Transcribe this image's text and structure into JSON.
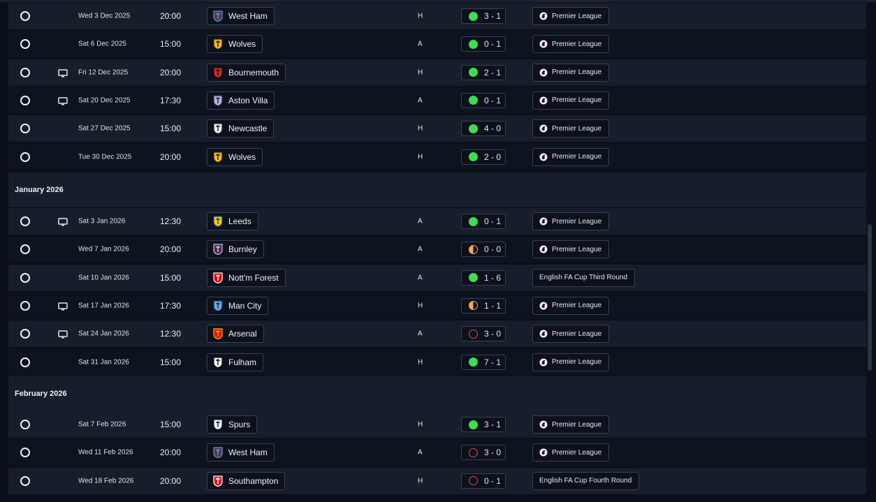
{
  "matches_pre": [
    {
      "date": "Wed 3 Dec 2025",
      "time": "20:00",
      "team": "West Ham",
      "venue": "H",
      "result": "3 - 1",
      "outcome": "win",
      "competition": "Premier League",
      "comp_icon": "premier-league-icon",
      "tv": false,
      "crest": "west-ham-crest-icon"
    },
    {
      "date": "Sat 6 Dec 2025",
      "time": "15:00",
      "team": "Wolves",
      "venue": "A",
      "result": "0 - 1",
      "outcome": "win",
      "competition": "Premier League",
      "comp_icon": "premier-league-icon",
      "tv": false,
      "crest": "wolves-crest-icon"
    },
    {
      "date": "Fri 12 Dec 2025",
      "time": "20:00",
      "team": "Bournemouth",
      "venue": "H",
      "result": "2 - 1",
      "outcome": "win",
      "competition": "Premier League",
      "comp_icon": "premier-league-icon",
      "tv": true,
      "crest": "bournemouth-crest-icon"
    },
    {
      "date": "Sat 20 Dec 2025",
      "time": "17:30",
      "team": "Aston Villa",
      "venue": "A",
      "result": "0 - 1",
      "outcome": "win",
      "competition": "Premier League",
      "comp_icon": "premier-league-icon",
      "tv": true,
      "crest": "aston-villa-crest-icon"
    },
    {
      "date": "Sat 27 Dec 2025",
      "time": "15:00",
      "team": "Newcastle",
      "venue": "H",
      "result": "4 - 0",
      "outcome": "win",
      "competition": "Premier League",
      "comp_icon": "premier-league-icon",
      "tv": false,
      "crest": "newcastle-crest-icon"
    },
    {
      "date": "Tue 30 Dec 2025",
      "time": "20:00",
      "team": "Wolves",
      "venue": "H",
      "result": "2 - 0",
      "outcome": "win",
      "competition": "Premier League",
      "comp_icon": "premier-league-icon",
      "tv": false,
      "crest": "wolves-crest-icon"
    }
  ],
  "month_jan": "January 2026",
  "matches_jan": [
    {
      "date": "Sat 3 Jan 2026",
      "time": "12:30",
      "team": "Leeds",
      "venue": "A",
      "result": "0 - 1",
      "outcome": "win",
      "competition": "Premier League",
      "comp_icon": "premier-league-icon",
      "tv": true,
      "crest": "leeds-crest-icon"
    },
    {
      "date": "Wed 7 Jan 2026",
      "time": "20:00",
      "team": "Burnley",
      "venue": "A",
      "result": "0 - 0",
      "outcome": "draw",
      "competition": "Premier League",
      "comp_icon": "premier-league-icon",
      "tv": false,
      "crest": "burnley-crest-icon"
    },
    {
      "date": "Sat 10 Jan 2026",
      "time": "15:00",
      "team": "Nott'm Forest",
      "venue": "A",
      "result": "1 - 6",
      "outcome": "win",
      "competition": "English FA Cup Third Round",
      "comp_icon": "",
      "tv": false,
      "crest": "nottm-forest-crest-icon"
    },
    {
      "date": "Sat 17 Jan 2026",
      "time": "17:30",
      "team": "Man City",
      "venue": "H",
      "result": "1 - 1",
      "outcome": "draw",
      "competition": "Premier League",
      "comp_icon": "premier-league-icon",
      "tv": true,
      "crest": "man-city-crest-icon"
    },
    {
      "date": "Sat 24 Jan 2026",
      "time": "12:30",
      "team": "Arsenal",
      "venue": "A",
      "result": "3 - 0",
      "outcome": "loss",
      "competition": "Premier League",
      "comp_icon": "premier-league-icon",
      "tv": true,
      "crest": "arsenal-crest-icon"
    },
    {
      "date": "Sat 31 Jan 2026",
      "time": "15:00",
      "team": "Fulham",
      "venue": "H",
      "result": "7 - 1",
      "outcome": "win",
      "competition": "Premier League",
      "comp_icon": "premier-league-icon",
      "tv": false,
      "crest": "fulham-crest-icon"
    }
  ],
  "month_feb": "February 2026",
  "matches_feb": [
    {
      "date": "Sat 7 Feb 2026",
      "time": "15:00",
      "team": "Spurs",
      "venue": "H",
      "result": "3 - 1",
      "outcome": "win",
      "competition": "Premier League",
      "comp_icon": "premier-league-icon",
      "tv": false,
      "crest": "spurs-crest-icon"
    },
    {
      "date": "Wed 11 Feb 2026",
      "time": "20:00",
      "team": "West Ham",
      "venue": "A",
      "result": "3 - 0",
      "outcome": "loss",
      "competition": "Premier League",
      "comp_icon": "premier-league-icon",
      "tv": false,
      "crest": "west-ham-crest-icon"
    },
    {
      "date": "Wed 18 Feb 2026",
      "time": "20:00",
      "team": "Southampton",
      "venue": "H",
      "result": "0 - 1",
      "outcome": "loss",
      "competition": "English FA Cup Fourth Round",
      "comp_icon": "",
      "tv": false,
      "crest": "southampton-crest-icon"
    }
  ],
  "colors": {
    "win": "#3ddc52",
    "draw": "#f7a35c",
    "loss": "#e04b50",
    "row_alt": "#171d2b",
    "row_base": "#0e1320"
  },
  "crest_colors": {
    "west-ham-crest-icon": [
      "#7a263a",
      "#1bb1e7"
    ],
    "wolves-crest-icon": [
      "#fdb913",
      "#231f20"
    ],
    "bournemouth-crest-icon": [
      "#da291c",
      "#111111"
    ],
    "aston-villa-crest-icon": [
      "#95bfe5",
      "#670e36"
    ],
    "newcastle-crest-icon": [
      "#f2f2f2",
      "#241f20"
    ],
    "leeds-crest-icon": [
      "#ffcd00",
      "#1d428a"
    ],
    "burnley-crest-icon": [
      "#6c1d45",
      "#99d6ea"
    ],
    "nottm-forest-crest-icon": [
      "#dd0000",
      "#ffffff"
    ],
    "man-city-crest-icon": [
      "#6cabdd",
      "#1c2c5b"
    ],
    "arsenal-crest-icon": [
      "#ef0107",
      "#e8c200"
    ],
    "fulham-crest-icon": [
      "#ffffff",
      "#111111"
    ],
    "spurs-crest-icon": [
      "#ffffff",
      "#132257"
    ],
    "southampton-crest-icon": [
      "#d71920",
      "#ffffff"
    ]
  }
}
